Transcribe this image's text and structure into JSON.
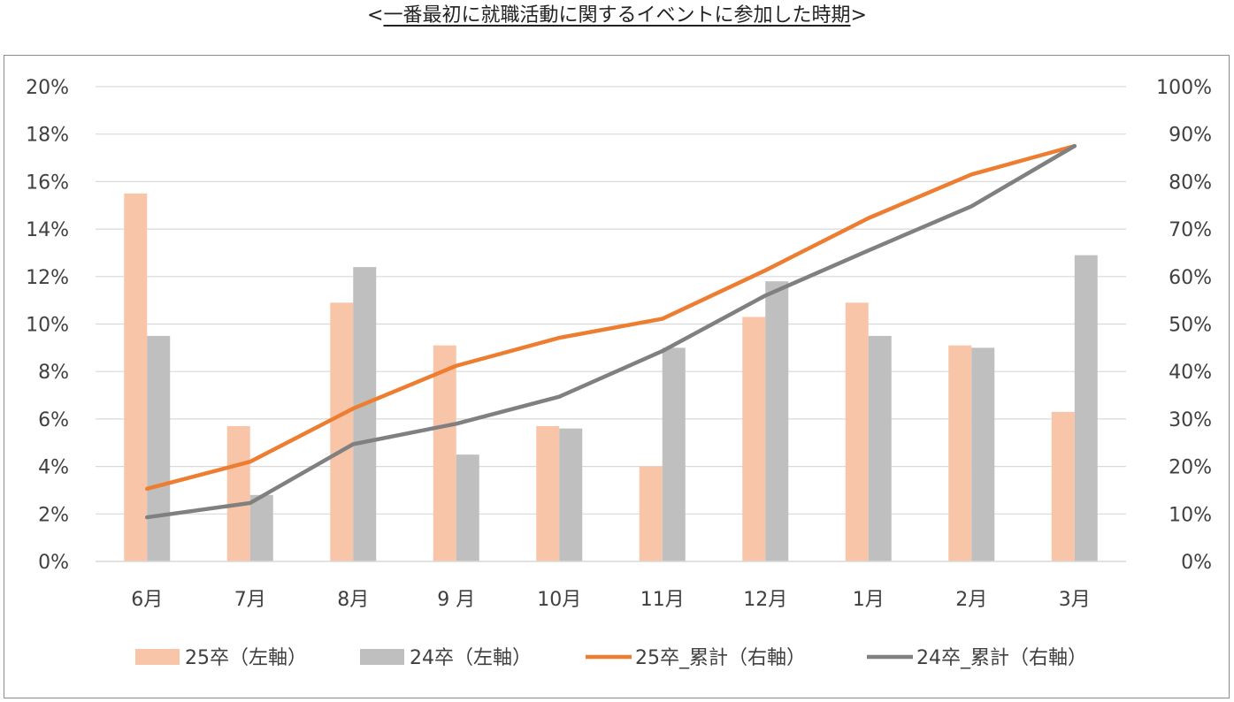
{
  "title": {
    "open": "<",
    "text": "一番最初に就職活動に関するイベントに参加した時期",
    "close": ">"
  },
  "chart_data": {
    "type": "bar",
    "title": "<一番最初に就職活動に関するイベントに参加した時期>",
    "categories": [
      "6月",
      "7月",
      "8月",
      "9 月",
      "10月",
      "11月",
      "12月",
      "1月",
      "2月",
      "3月"
    ],
    "left_axis": {
      "ylim": [
        0,
        20
      ],
      "ticks": [
        "0%",
        "2%",
        "4%",
        "6%",
        "8%",
        "10%",
        "12%",
        "14%",
        "16%",
        "18%",
        "20%"
      ]
    },
    "right_axis": {
      "ylim": [
        0,
        100
      ],
      "ticks": [
        "0%",
        "10%",
        "20%",
        "30%",
        "40%",
        "50%",
        "60%",
        "70%",
        "80%",
        "90%",
        "100%"
      ]
    },
    "grid": true,
    "legend_position": "bottom",
    "series": [
      {
        "name": "25卒（左軸）",
        "kind": "bar",
        "axis": "left",
        "color": "#f8c5a8",
        "values": [
          15.5,
          5.7,
          10.9,
          9.1,
          5.7,
          4.0,
          10.3,
          10.9,
          9.1,
          6.3
        ]
      },
      {
        "name": "24卒（左軸）",
        "kind": "bar",
        "axis": "left",
        "color": "#bfbfbf",
        "values": [
          9.5,
          2.8,
          12.4,
          4.5,
          5.6,
          9.0,
          11.8,
          9.5,
          9.0,
          12.9
        ]
      },
      {
        "name": "25卒_累計（右軸）",
        "kind": "line",
        "axis": "right",
        "color": "#ed7d31",
        "values": [
          15.3,
          21.0,
          32.2,
          41.2,
          47.1,
          51.1,
          61.3,
          72.3,
          81.5,
          87.5
        ]
      },
      {
        "name": "24卒_累計（右軸）",
        "kind": "line",
        "axis": "right",
        "color": "#808080",
        "values": [
          9.3,
          12.3,
          24.7,
          29.0,
          34.7,
          44.3,
          56.0,
          65.5,
          74.8,
          87.5
        ]
      }
    ]
  }
}
